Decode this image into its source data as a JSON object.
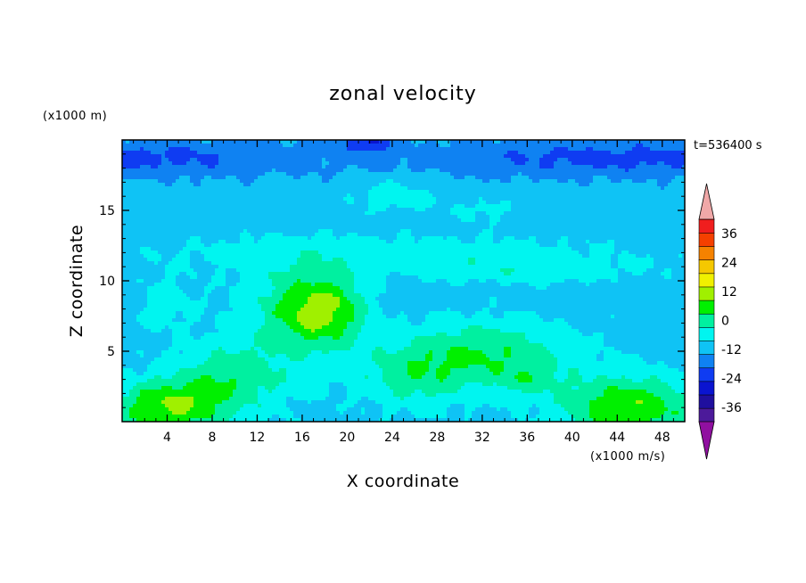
{
  "chart_data": {
    "type": "heatmap",
    "title": "zonal velocity",
    "xlabel": "X coordinate",
    "ylabel": "Z coordinate",
    "x_unit": "(x1000 m/s)",
    "y_unit": "(x1000 m)",
    "time_label": "t=536400 s",
    "xlim": [
      0,
      50
    ],
    "ylim": [
      0,
      20
    ],
    "x_ticks": [
      "4",
      "8",
      "12",
      "16",
      "20",
      "24",
      "28",
      "32",
      "36",
      "40",
      "44",
      "48"
    ],
    "y_ticks": [
      "5",
      "10",
      "15"
    ],
    "x_tick_values": [
      4,
      8,
      12,
      16,
      20,
      24,
      28,
      32,
      36,
      40,
      44,
      48
    ],
    "y_tick_values": [
      5,
      10,
      15
    ],
    "colorbar": {
      "levels": [
        -42,
        -36,
        -30,
        -24,
        -18,
        -12,
        -6,
        0,
        6,
        12,
        18,
        24,
        30,
        36,
        42
      ],
      "labels": [
        "36",
        "24",
        "12",
        "0",
        "-12",
        "-24",
        "-36"
      ],
      "label_values": [
        36,
        24,
        12,
        0,
        -12,
        -24,
        -36
      ],
      "colors": [
        "#4c1a9a",
        "#1f0f9e",
        "#0a14d0",
        "#0f3cf2",
        "#0f82f2",
        "#0fc3f5",
        "#00f5f0",
        "#00f0a0",
        "#00f000",
        "#a0f000",
        "#f0f000",
        "#f5c800",
        "#f58200",
        "#f54000",
        "#f01e1e"
      ],
      "under_color": "#9010a0",
      "over_color": "#f0a8a8"
    },
    "grid": false,
    "legend": "colorbar right"
  }
}
